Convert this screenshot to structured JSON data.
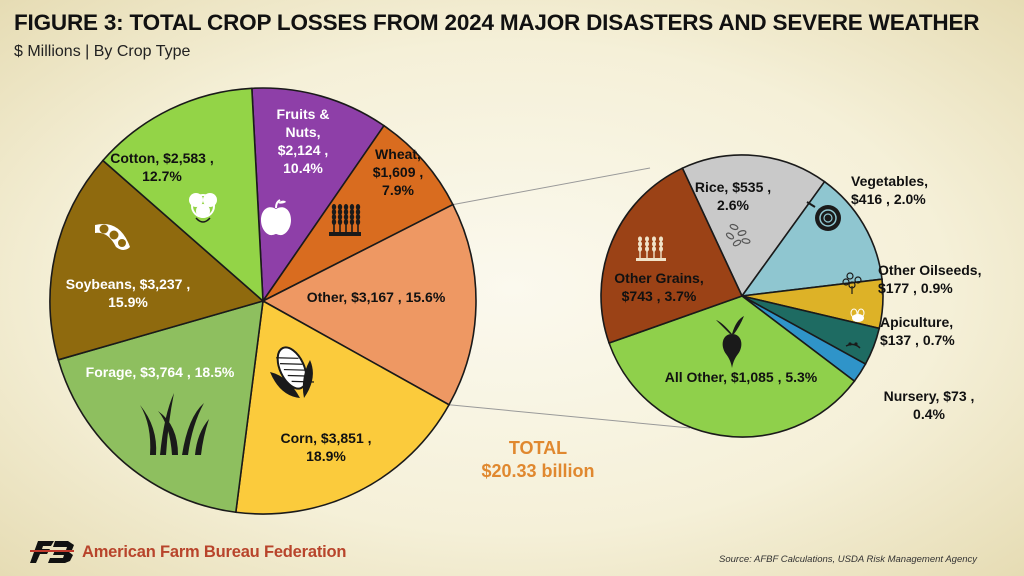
{
  "title": "FIGURE 3: TOTAL CROP LOSSES FROM 2024 MAJOR DISASTERS AND SEVERE WEATHER",
  "subtitle": "$ Millions | By Crop Type",
  "total": {
    "label": "TOTAL",
    "value": "$20.33 billion"
  },
  "footer": {
    "brand": "American Farm Bureau Federation",
    "source": "Source: AFBF Calculations, USDA Risk Management Agency"
  },
  "chart_data": [
    {
      "type": "pie",
      "name": "main",
      "slices": [
        {
          "label": "Fruits & Nuts",
          "value": 2124,
          "pct": "10.4%",
          "color": "#8e3fa8",
          "icon": "apple-icon"
        },
        {
          "label": "Wheat",
          "value": 1609,
          "pct": "7.9%",
          "color": "#d96c1f",
          "icon": "wheat-icon"
        },
        {
          "label": "Other",
          "value": 3167,
          "pct": "15.6%",
          "color": "#ee9863",
          "icon": ""
        },
        {
          "label": "Corn",
          "value": 3851,
          "pct": "18.9%",
          "color": "#fbcb3c",
          "icon": "corn-icon"
        },
        {
          "label": "Forage",
          "value": 3764,
          "pct": "18.5%",
          "color": "#8ebf5f",
          "icon": "grass-icon"
        },
        {
          "label": "Soybeans",
          "value": 3237,
          "pct": "15.9%",
          "color": "#8f6a0e",
          "icon": "soybean-icon"
        },
        {
          "label": "Cotton",
          "value": 2583,
          "pct": "12.7%",
          "color": "#93d447",
          "icon": "cotton-icon"
        }
      ],
      "display": [
        {
          "lines": [
            "Fruits &",
            "Nuts,",
            "$2,124 ,",
            "10.4%"
          ]
        },
        {
          "lines": [
            "Wheat,",
            "$1,609 ,",
            "7.9%"
          ]
        },
        {
          "lines": [
            "Other,  $3,167 , 15.6%"
          ]
        },
        {
          "lines": [
            "Corn,  $3,851 ,",
            "18.9%"
          ]
        },
        {
          "lines": [
            "Forage,  $3,764 , 18.5%"
          ]
        },
        {
          "lines": [
            "Soybeans,  $3,237 ,",
            "15.9%"
          ]
        },
        {
          "lines": [
            "Cotton,  $2,583 ,",
            "12.7%"
          ]
        }
      ]
    },
    {
      "type": "pie",
      "name": "other-breakdown",
      "slices": [
        {
          "label": "Rice",
          "value": 535,
          "pct": "2.6%",
          "color": "#c9c9c9",
          "icon": "rice-icon"
        },
        {
          "label": "Vegetables",
          "value": 416,
          "pct": "2.0%",
          "color": "#8fc6d0",
          "icon": "onion-icon"
        },
        {
          "label": "Other Oilseeds",
          "value": 177,
          "pct": "0.9%",
          "color": "#ddb227",
          "icon": "oilseed-icon"
        },
        {
          "label": "Apiculture",
          "value": 137,
          "pct": "0.7%",
          "color": "#1e6b62",
          "icon": "bee-icon"
        },
        {
          "label": "Nursery",
          "value": 73,
          "pct": "0.4%",
          "color": "#2f94c9",
          "icon": "nursery-icon"
        },
        {
          "label": "All Other",
          "value": 1085,
          "pct": "5.3%",
          "color": "#8fd04b",
          "icon": "beet-icon"
        },
        {
          "label": "Other Grains",
          "value": 743,
          "pct": "3.7%",
          "color": "#9b4216",
          "icon": "grain-icon"
        }
      ],
      "display": [
        {
          "lines": [
            "Rice,  $535 ,",
            "2.6%"
          ]
        },
        {
          "lines": [
            "Vegetables,",
            "$416 , 2.0%"
          ]
        },
        {
          "lines": [
            "Other Oilseeds,",
            "$177 , 0.9%"
          ]
        },
        {
          "lines": [
            "Apiculture,",
            "$137 , 0.7%"
          ]
        },
        {
          "lines": [
            "Nursery,  $73 ,",
            "0.4%"
          ]
        },
        {
          "lines": [
            "All Other,  $1,085 , 5.3%"
          ]
        },
        {
          "lines": [
            "Other Grains,",
            "$743 , 3.7%"
          ]
        }
      ]
    }
  ]
}
